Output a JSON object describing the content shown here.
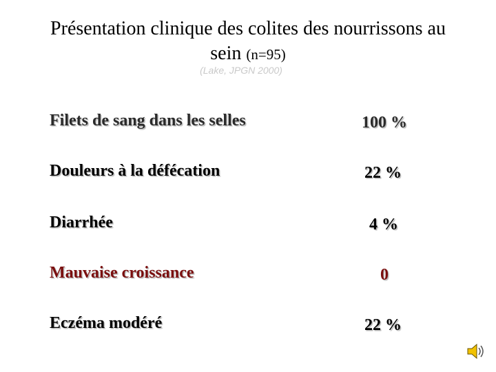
{
  "slide": {
    "title_line1": "Présentation clinique des colites des nourrissons au",
    "title_line2_main": "sein ",
    "title_line2_small": "(n=95)",
    "source": "(Lake, JPGN 2000)"
  },
  "rows": [
    {
      "label": "Filets de sang dans les selles",
      "value": "100 %",
      "label_color": "#2a2a2a",
      "value_color": "#2a2a2a"
    },
    {
      "label": "Douleurs à la défécation",
      "value": "22 %",
      "label_color": "#000000",
      "value_color": "#000000"
    },
    {
      "label": "Diarrhée",
      "value": "4 %",
      "label_color": "#000000",
      "value_color": "#000000"
    },
    {
      "label": "Mauvaise croissance",
      "value": "0",
      "label_color": "#7a0f0f",
      "value_color": "#7a0f0f"
    },
    {
      "label": "Eczéma modéré",
      "value": "22 %",
      "label_color": "#000000",
      "value_color": "#000000"
    }
  ],
  "icons": {
    "speaker": "speaker-icon"
  }
}
